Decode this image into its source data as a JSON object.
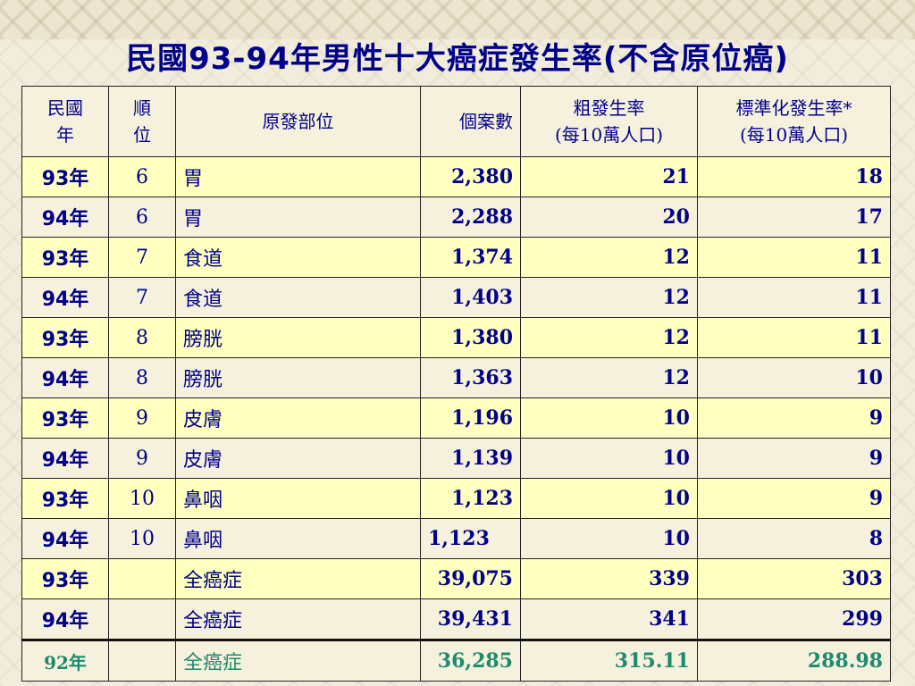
{
  "title": "民國93-94年男性十大癌症發生率(不含原位癌)",
  "headers": {
    "year": [
      "民國",
      "年"
    ],
    "rank": [
      "順",
      "位"
    ],
    "site": "原發部位",
    "cases": "個案數",
    "crude": [
      "粗發生率",
      "(每10萬人口)"
    ],
    "std": [
      "標準化發生率*",
      "(每10萬人口)"
    ]
  },
  "rows": [
    {
      "year": "93年",
      "rank": "6",
      "site": "胃",
      "cases": "2,380",
      "crude": "21",
      "std": "18"
    },
    {
      "year": "94年",
      "rank": "6",
      "site": "胃",
      "cases": "2,288",
      "crude": "20",
      "std": "17"
    },
    {
      "year": "93年",
      "rank": "7",
      "site": "食道",
      "cases": "1,374",
      "crude": "12",
      "std": "11"
    },
    {
      "year": "94年",
      "rank": "7",
      "site": "食道",
      "cases": "1,403",
      "crude": "12",
      "std": "11"
    },
    {
      "year": "93年",
      "rank": "8",
      "site": "膀胱",
      "cases": "1,380",
      "crude": "12",
      "std": "11"
    },
    {
      "year": "94年",
      "rank": "8",
      "site": "膀胱",
      "cases": "1,363",
      "crude": "12",
      "std": "10"
    },
    {
      "year": "93年",
      "rank": "9",
      "site": "皮膚",
      "cases": "1,196",
      "crude": "10",
      "std": "9"
    },
    {
      "year": "94年",
      "rank": "9",
      "site": "皮膚",
      "cases": "1,139",
      "crude": "10",
      "std": "9"
    },
    {
      "year": "93年",
      "rank": "10",
      "site": "鼻咽",
      "cases": "1,123",
      "crude": "10",
      "std": "9"
    },
    {
      "year": "94年",
      "rank": "10",
      "site": "鼻咽",
      "cases": "1,123",
      "crude": "10",
      "std": "8"
    },
    {
      "year": "93年",
      "rank": "",
      "site": "全癌症",
      "cases": "39,075",
      "crude": "339",
      "std": "303"
    },
    {
      "year": "94年",
      "rank": "",
      "site": "全癌症",
      "cases": "39,431",
      "crude": "341",
      "std": "299"
    },
    {
      "year": "92年",
      "rank": "",
      "site": "全癌症",
      "cases": "36,285",
      "crude": "315.11",
      "std": "288.98"
    }
  ],
  "colors": {
    "text": "#00008b",
    "highlight": "#ffffc0",
    "last_row": "#1e8a6e"
  }
}
